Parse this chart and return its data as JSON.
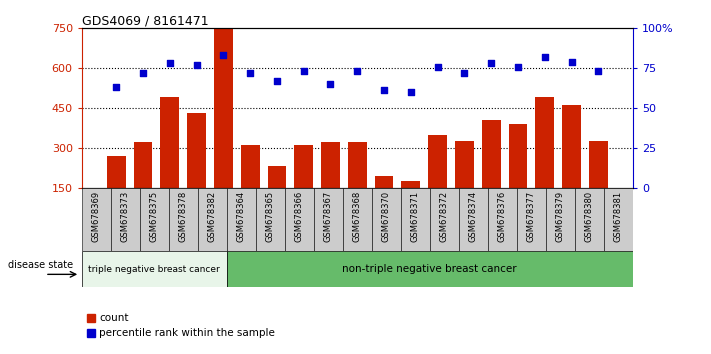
{
  "title": "GDS4069 / 8161471",
  "samples": [
    "GSM678369",
    "GSM678373",
    "GSM678375",
    "GSM678378",
    "GSM678382",
    "GSM678364",
    "GSM678365",
    "GSM678366",
    "GSM678367",
    "GSM678368",
    "GSM678370",
    "GSM678371",
    "GSM678372",
    "GSM678374",
    "GSM678376",
    "GSM678377",
    "GSM678379",
    "GSM678380",
    "GSM678381"
  ],
  "counts": [
    270,
    320,
    490,
    430,
    750,
    310,
    230,
    310,
    320,
    320,
    195,
    175,
    350,
    325,
    405,
    390,
    490,
    460,
    325
  ],
  "percentiles": [
    63,
    72,
    78,
    77,
    83,
    72,
    67,
    73,
    65,
    73,
    61,
    60,
    76,
    72,
    78,
    76,
    82,
    79,
    73
  ],
  "group1_label": "triple negative breast cancer",
  "group1_count": 5,
  "group2_label": "non-triple negative breast cancer",
  "group2_count": 14,
  "disease_state_label": "disease state",
  "ylim_left": [
    150,
    750
  ],
  "yticks_left": [
    150,
    300,
    450,
    600,
    750
  ],
  "ylim_right": [
    0,
    100
  ],
  "yticks_right": [
    0,
    25,
    50,
    75,
    100
  ],
  "bar_color": "#CC2200",
  "dot_color": "#0000CC",
  "group1_bg": "#e8f5e9",
  "group2_bg": "#66bb6a",
  "xtick_bg": "#cccccc",
  "legend_count_label": "count",
  "legend_pct_label": "percentile rank within the sample"
}
